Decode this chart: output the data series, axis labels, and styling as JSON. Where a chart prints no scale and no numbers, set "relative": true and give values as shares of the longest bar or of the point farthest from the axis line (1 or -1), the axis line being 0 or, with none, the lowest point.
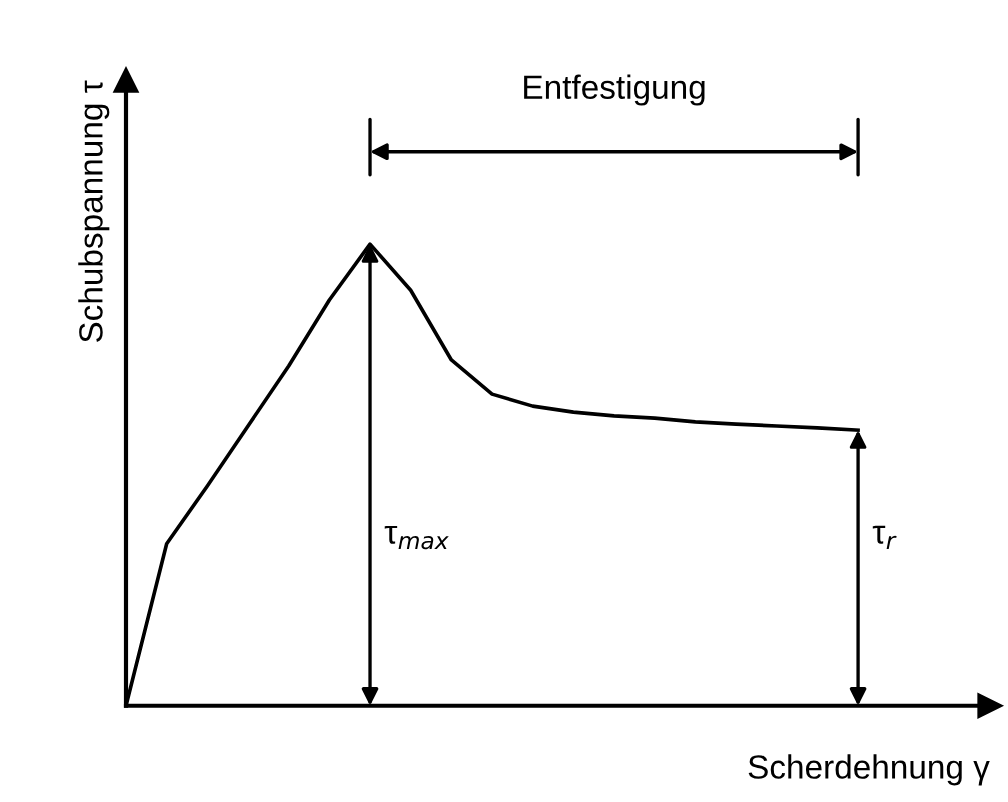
{
  "chart_data": {
    "type": "line",
    "relative": true,
    "xlabel": "Scherdehnung γ",
    "ylabel": "Schubspannung τ",
    "categories": [
      null,
      null,
      null,
      null,
      null,
      null,
      null,
      null,
      null,
      null,
      null,
      null,
      null,
      null,
      null,
      null,
      null,
      null,
      null
    ],
    "series": [
      {
        "color": "#000000",
        "values": [
          0,
          0.351,
          0.476,
          0.606,
          0.736,
          0.879,
          1,
          0.9,
          0.749,
          0.675,
          0.649,
          0.636,
          0.628,
          0.623,
          0.615,
          0.61,
          0.606,
          0.602,
          0.597
        ]
      }
    ],
    "annotations": [
      "Entfestigung",
      "τ$_{max}$",
      "τ$_{r}$"
    ],
    "grid": false,
    "marker": "none",
    "line_style": "solid"
  }
}
